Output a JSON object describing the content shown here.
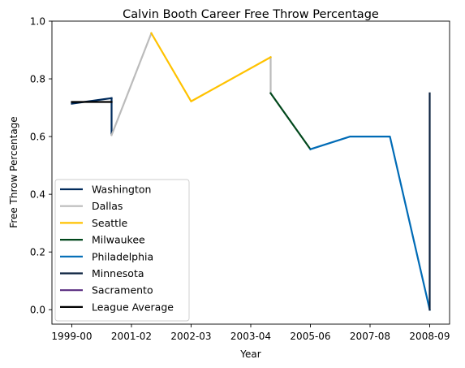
{
  "chart_data": {
    "type": "line",
    "title": "Calvin Booth Career Free Throw Percentage",
    "xlabel": "Year",
    "ylabel": "Free Throw Percentage",
    "xlim": [
      -0.5,
      9.5
    ],
    "ylim": [
      -0.05,
      1.0
    ],
    "x_ticks": [
      {
        "pos": 0,
        "label": "1999-00"
      },
      {
        "pos": 1.5,
        "label": "2001-02"
      },
      {
        "pos": 3,
        "label": "2002-03"
      },
      {
        "pos": 4.5,
        "label": "2003-04"
      },
      {
        "pos": 6,
        "label": "2005-06"
      },
      {
        "pos": 7.5,
        "label": "2007-08"
      },
      {
        "pos": 9,
        "label": "2008-09"
      }
    ],
    "y_ticks": [
      0.0,
      0.2,
      0.4,
      0.6,
      0.8,
      1.0
    ],
    "y_tick_labels": [
      "0.0",
      "0.2",
      "0.4",
      "0.6",
      "0.8",
      "1.0"
    ],
    "series": [
      {
        "name": "Washington",
        "color": "#002B5C",
        "x": [
          0,
          1
        ],
        "y": [
          0.714,
          0.733
        ]
      },
      {
        "name": "Dallas",
        "color": "#BBBBBB",
        "x": [
          1,
          2
        ],
        "y": [
          0.605,
          0.958
        ]
      },
      {
        "name": "Seattle",
        "color": "#FFC200",
        "x": [
          2,
          3,
          5
        ],
        "y": [
          0.958,
          0.722,
          0.875
        ]
      },
      {
        "name": "Milwaukee",
        "color": "#00471B",
        "x": [
          5,
          6
        ],
        "y": [
          0.75,
          0.556
        ]
      },
      {
        "name": "Philadelphia",
        "color": "#006BB6",
        "x": [
          6,
          7,
          8,
          9
        ],
        "y": [
          0.556,
          0.6,
          0.6,
          0.0
        ]
      },
      {
        "name": "Minnesota",
        "color": "#0C2340",
        "x": [
          9,
          9
        ],
        "y": [
          0.0,
          0.75
        ]
      },
      {
        "name": "Sacramento",
        "color": "#5A2D81",
        "x": [],
        "y": []
      },
      {
        "name": "League Average",
        "color": "#000000",
        "x": [
          0,
          1
        ],
        "y": [
          0.72,
          0.72
        ]
      }
    ],
    "connectors": [
      {
        "color": "#002B5C",
        "x": [
          1,
          1
        ],
        "y": [
          0.733,
          0.61
        ]
      },
      {
        "color": "#BBBBBB",
        "x": [
          5,
          5
        ],
        "y": [
          0.875,
          0.75
        ]
      }
    ],
    "legend_position": "lower-left"
  }
}
